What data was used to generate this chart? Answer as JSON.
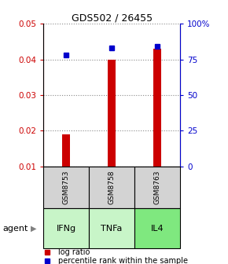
{
  "title": "GDS502 / 26455",
  "samples": [
    "GSM8753",
    "GSM8758",
    "GSM8763"
  ],
  "agents": [
    "IFNg",
    "TNFa",
    "IL4"
  ],
  "log_ratio": [
    0.019,
    0.04,
    0.043
  ],
  "percentile_rank": [
    78,
    83,
    84
  ],
  "bar_color": "#cc0000",
  "point_color": "#0000cc",
  "ylim_left": [
    0.01,
    0.05
  ],
  "ylim_right": [
    0,
    100
  ],
  "yticks_left": [
    0.01,
    0.02,
    0.03,
    0.04,
    0.05
  ],
  "yticks_right": [
    0,
    25,
    50,
    75,
    100
  ],
  "yticklabels_right": [
    "0",
    "25",
    "50",
    "75",
    "100%"
  ],
  "agent_colors": [
    "#c8f5c8",
    "#c8f5c8",
    "#7fe87f"
  ],
  "sample_bg": "#d3d3d3",
  "legend_log_label": "log ratio",
  "legend_pct_label": "percentile rank within the sample",
  "bar_width": 0.18,
  "grid_color": "#888888",
  "agent_label": "agent",
  "baseline": 0.01
}
